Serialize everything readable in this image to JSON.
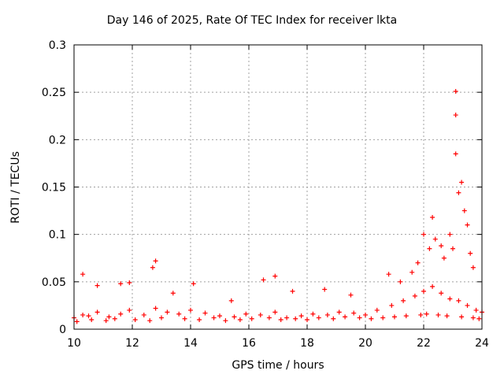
{
  "chart_data": {
    "type": "scatter",
    "title": "Day 146 of 2025, Rate Of TEC Index for receiver lkta",
    "xlabel": "GPS time / hours",
    "ylabel": "ROTI / TECUs",
    "xlim": [
      10,
      24
    ],
    "ylim": [
      0,
      0.3
    ],
    "xticks": [
      "10",
      "12",
      "14",
      "16",
      "18",
      "20",
      "22",
      "24"
    ],
    "yticks": [
      "0",
      "0.05",
      "0.1",
      "0.15",
      "0.2",
      "0.25",
      "0.3"
    ],
    "grid": true,
    "marker": "+",
    "series": [
      {
        "name": "ROTI",
        "color": "#ff0000",
        "x": [
          10.0,
          10.3,
          10.5,
          10.8,
          11.2,
          11.6,
          11.9,
          12.4,
          12.8,
          13.2,
          13.6,
          14.0,
          14.5,
          15.0,
          15.5,
          15.9,
          16.4,
          16.9,
          17.3,
          17.8,
          18.2,
          18.7,
          19.1,
          19.6,
          20.0,
          20.4,
          20.9,
          21.3,
          21.7,
          22.0,
          22.3,
          22.6,
          22.9,
          23.2,
          23.5,
          23.8,
          24.0,
          10.3,
          10.8,
          11.6,
          11.9,
          12.7,
          12.8,
          13.4,
          14.1,
          15.4,
          16.5,
          16.9,
          17.5,
          18.6,
          19.5,
          20.8,
          21.2,
          21.6,
          21.8,
          22.0,
          22.2,
          22.3,
          22.4,
          22.6,
          22.7,
          22.9,
          23.0,
          23.1,
          23.1,
          23.1,
          23.2,
          23.3,
          23.4,
          23.5,
          23.6,
          23.7,
          10.1,
          10.6,
          11.1,
          11.4,
          12.1,
          12.6,
          13.0,
          13.8,
          14.3,
          14.8,
          15.2,
          15.7,
          16.1,
          16.7,
          17.1,
          17.6,
          18.0,
          18.4,
          18.9,
          19.3,
          19.8,
          20.2,
          20.6,
          21.0,
          21.4,
          21.9,
          22.1,
          22.5,
          22.8,
          23.3,
          23.7,
          23.9
        ],
        "y": [
          0.012,
          0.015,
          0.014,
          0.018,
          0.013,
          0.016,
          0.02,
          0.015,
          0.022,
          0.018,
          0.016,
          0.02,
          0.017,
          0.014,
          0.013,
          0.016,
          0.015,
          0.018,
          0.012,
          0.014,
          0.016,
          0.015,
          0.018,
          0.017,
          0.015,
          0.02,
          0.025,
          0.03,
          0.035,
          0.04,
          0.045,
          0.038,
          0.032,
          0.03,
          0.025,
          0.02,
          0.018,
          0.058,
          0.046,
          0.048,
          0.049,
          0.065,
          0.072,
          0.038,
          0.048,
          0.03,
          0.052,
          0.056,
          0.04,
          0.042,
          0.036,
          0.058,
          0.05,
          0.06,
          0.07,
          0.1,
          0.085,
          0.118,
          0.095,
          0.088,
          0.075,
          0.1,
          0.085,
          0.251,
          0.226,
          0.185,
          0.144,
          0.155,
          0.125,
          0.11,
          0.08,
          0.065,
          0.008,
          0.01,
          0.009,
          0.011,
          0.01,
          0.009,
          0.012,
          0.011,
          0.01,
          0.012,
          0.009,
          0.01,
          0.011,
          0.012,
          0.01,
          0.011,
          0.01,
          0.012,
          0.011,
          0.013,
          0.012,
          0.011,
          0.012,
          0.013,
          0.014,
          0.015,
          0.016,
          0.015,
          0.014,
          0.013,
          0.012,
          0.011
        ]
      }
    ]
  }
}
